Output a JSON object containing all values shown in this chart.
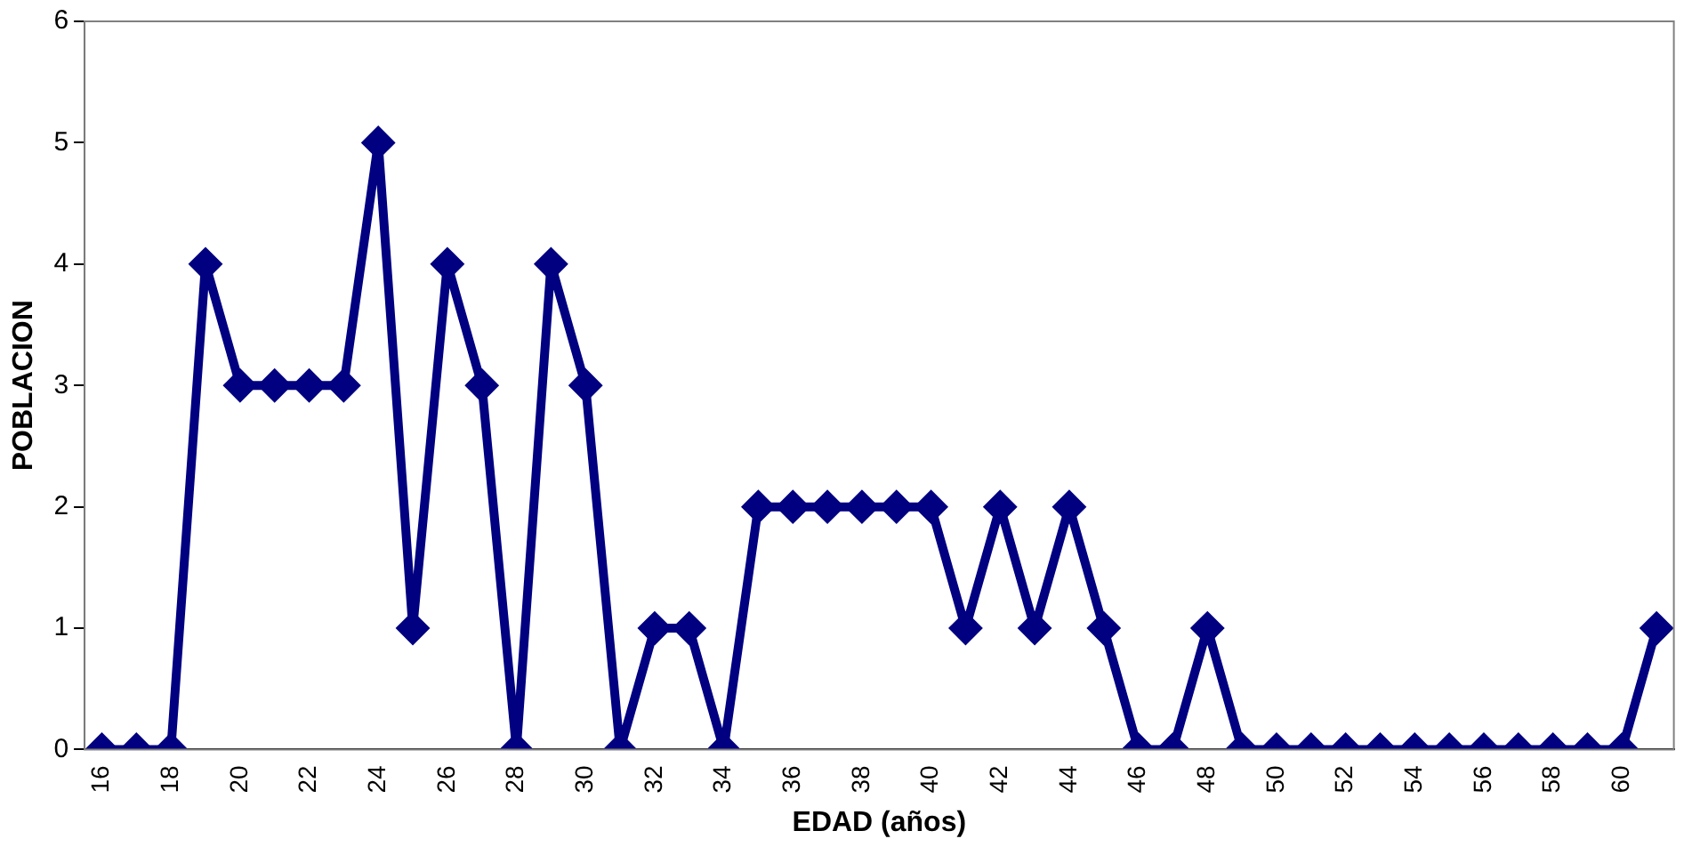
{
  "chart_data": {
    "type": "line",
    "xlabel": "EDAD (años)",
    "ylabel": "POBLACION",
    "categories": [
      "16",
      null,
      "18",
      null,
      "20",
      null,
      "22",
      null,
      "24",
      null,
      "26",
      null,
      "28",
      null,
      "30",
      null,
      "32",
      null,
      "34",
      null,
      "36",
      null,
      "38",
      null,
      "40",
      null,
      "42",
      null,
      "44",
      null,
      "46",
      null,
      "48",
      null,
      "50",
      null,
      "52",
      null,
      "54",
      null,
      "56",
      null,
      "58",
      null,
      "60",
      null
    ],
    "series": [
      {
        "color": "#000080",
        "values": [
          0,
          0,
          0,
          4,
          3,
          3,
          3,
          3,
          5,
          1,
          4,
          3,
          0,
          4,
          3,
          0,
          1,
          1,
          0,
          2,
          2,
          2,
          2,
          2,
          2,
          1,
          2,
          1,
          2,
          1,
          0,
          0,
          1,
          0,
          0,
          0,
          0,
          0,
          0,
          0,
          0,
          0,
          0,
          0,
          0,
          1
        ]
      }
    ],
    "ylim": [
      0,
      6
    ],
    "yticks": [
      0,
      1,
      2,
      3,
      4,
      5,
      6
    ],
    "grid": false,
    "legend": false,
    "marker": "diamond",
    "line_style": "solid"
  }
}
